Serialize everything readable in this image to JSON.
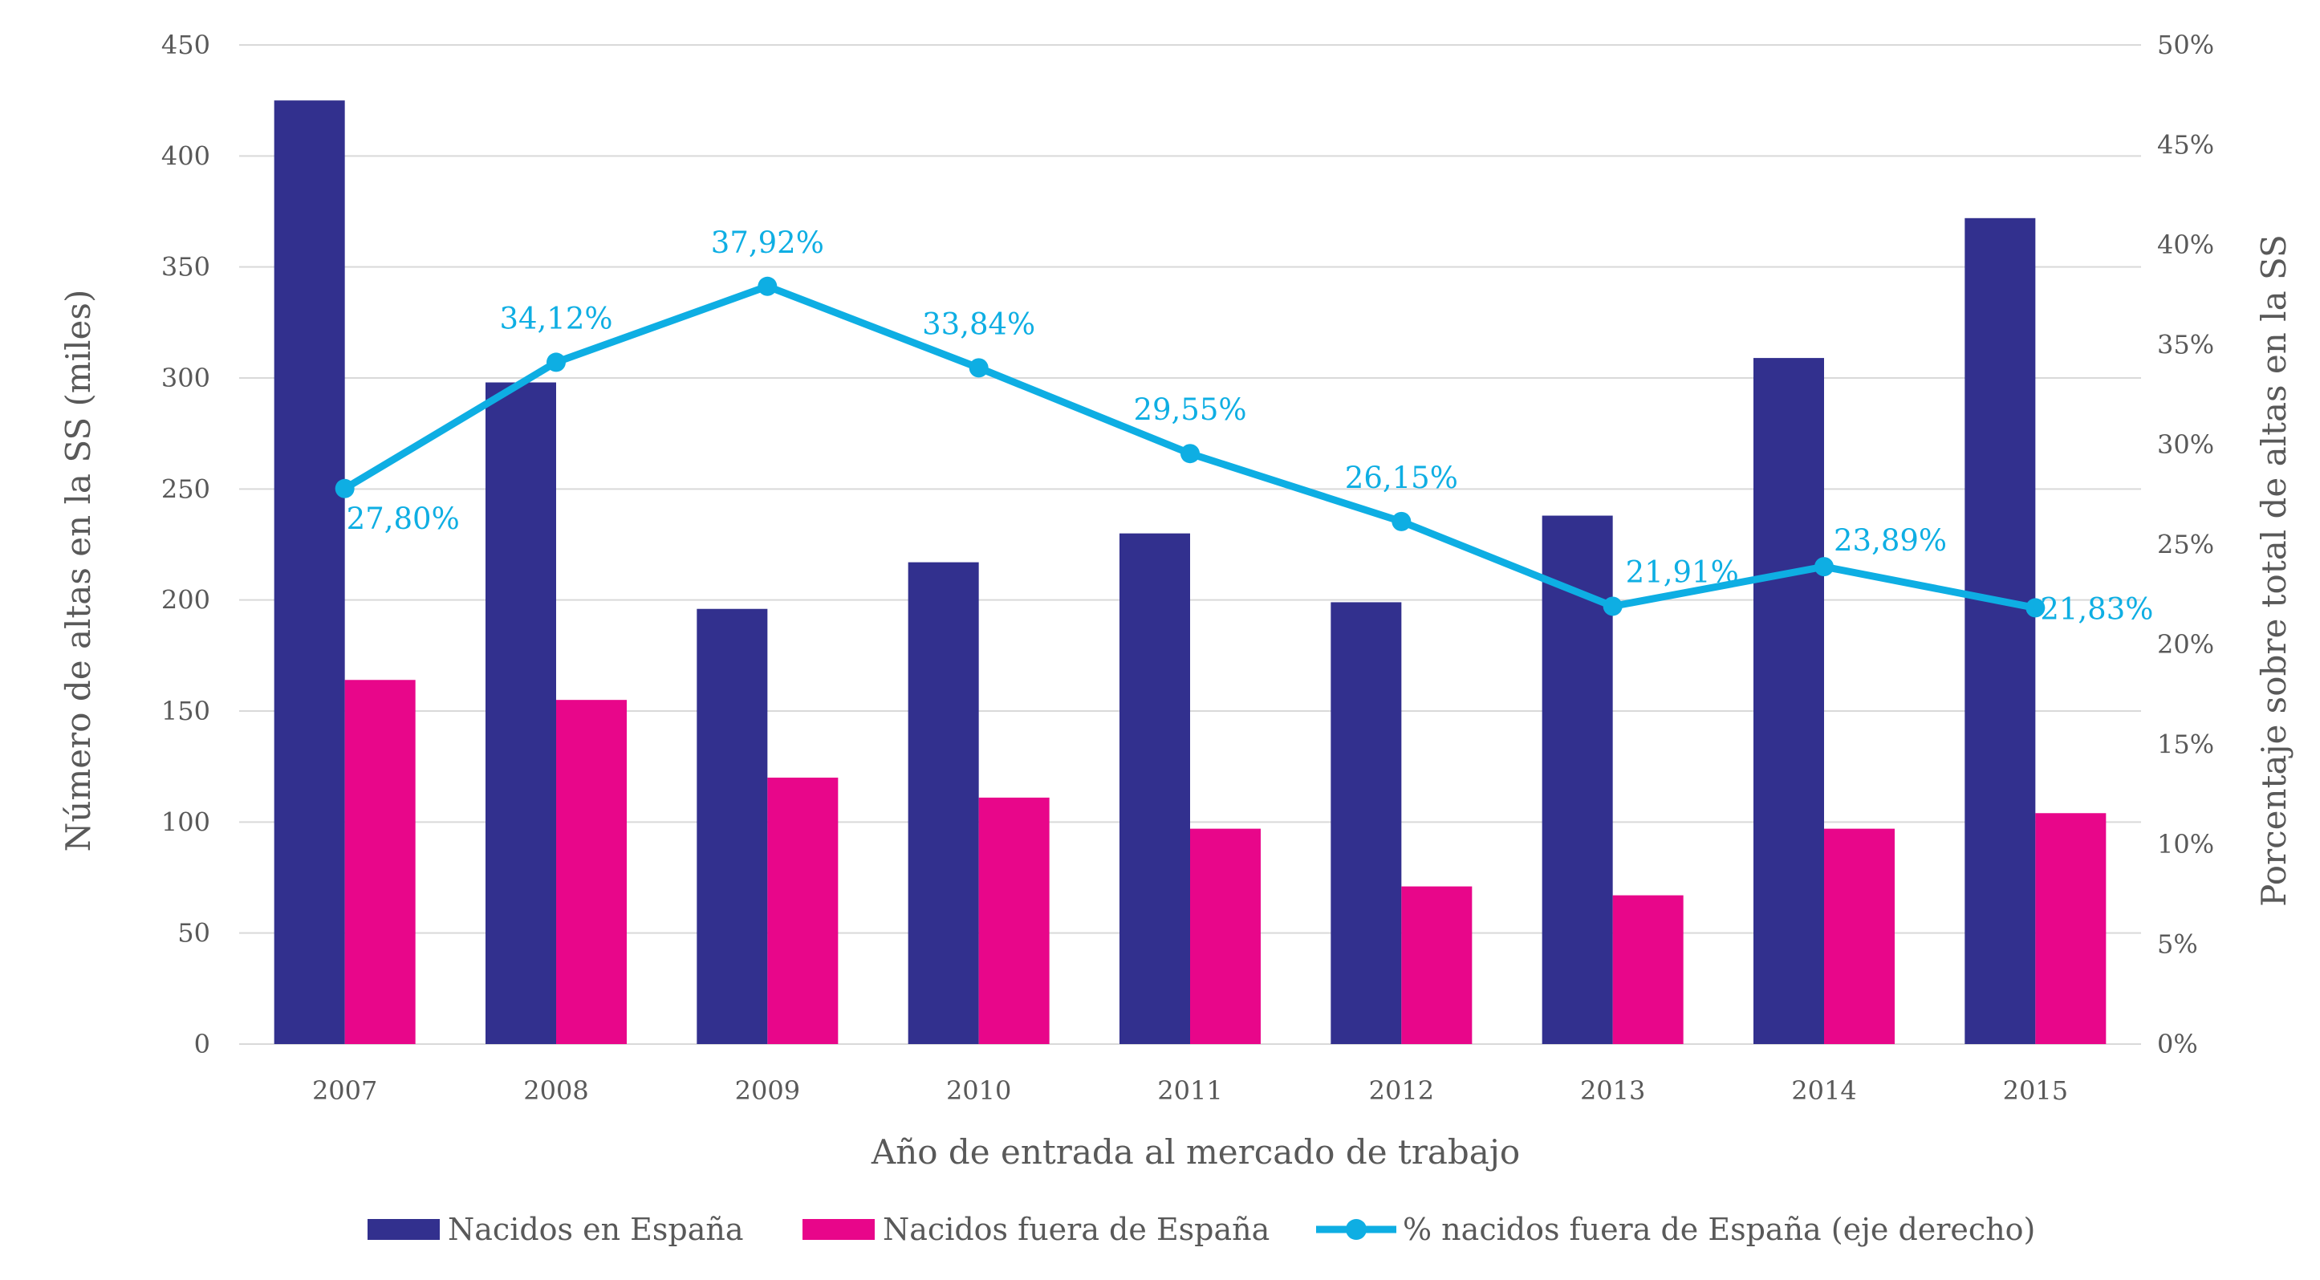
{
  "chart_data": {
    "type": "bar",
    "categories": [
      "2007",
      "2008",
      "2009",
      "2010",
      "2011",
      "2012",
      "2013",
      "2014",
      "2015"
    ],
    "series": [
      {
        "name": "Nacidos en España",
        "type": "bar",
        "axis": "left",
        "color": "#32308E",
        "values": [
          425,
          298,
          196,
          217,
          230,
          199,
          238,
          309,
          372
        ]
      },
      {
        "name": "Nacidos fuera de España",
        "type": "bar",
        "axis": "left",
        "color": "#E8068A",
        "values": [
          164,
          155,
          120,
          111,
          97,
          71,
          67,
          97,
          104
        ]
      },
      {
        "name": "% nacidos fuera de España (eje derecho)",
        "type": "line",
        "axis": "right",
        "color": "#0EAEE3",
        "values": [
          27.8,
          34.12,
          37.92,
          33.84,
          29.55,
          26.15,
          21.91,
          23.89,
          21.83
        ],
        "labels": [
          "27,80%",
          "34,12%",
          "37,92%",
          "33,84%",
          "29,55%",
          "26,15%",
          "21,91%",
          "23,89%",
          "21,83%"
        ]
      }
    ],
    "xlabel": "Año de entrada al mercado de trabajo",
    "ylabel": "Número de altas en la SS (miles)",
    "y2label": "Porcentaje sobre total de altas en la SS",
    "ylim": [
      0,
      450
    ],
    "y2lim": [
      0,
      50
    ],
    "yticks": [
      "0",
      "50",
      "100",
      "150",
      "200",
      "250",
      "300",
      "350",
      "400",
      "450"
    ],
    "y2ticks": [
      "0%",
      "5%",
      "10%",
      "15%",
      "20%",
      "25%",
      "30%",
      "35%",
      "40%",
      "45%",
      "50%"
    ],
    "grid": true,
    "legend_position": "bottom"
  }
}
